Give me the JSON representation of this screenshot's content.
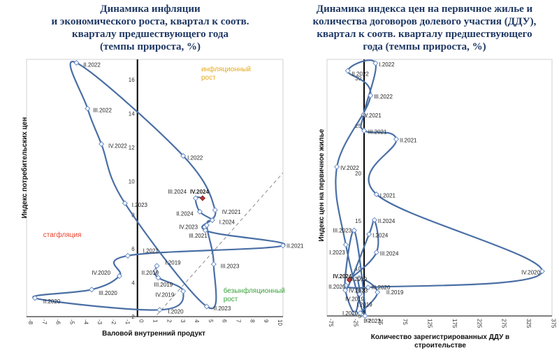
{
  "chart_data": [
    {
      "type": "line",
      "title": "Динамика инфляции\nи экономического роста, квартал к соотв.\nкварталу предшествующего года\n(темпы прироста, %)",
      "xlabel": "Валовой внутренний продукт",
      "ylabel": "Индекс потребительских цен",
      "xlim": [
        -8,
        10.5
      ],
      "ylim": [
        2,
        17.2
      ],
      "x_ticks": [
        -8,
        -7,
        -6,
        -5,
        -4,
        -3,
        -2,
        -1,
        0,
        1,
        2,
        3,
        4,
        5,
        6,
        7,
        8,
        9,
        10
      ],
      "y_ticks": [
        2,
        4,
        6,
        8,
        10,
        12,
        14,
        16
      ],
      "grid": false,
      "zones": [
        {
          "text": "инфляционный\nрост",
          "color": "#e6a817",
          "x": 4.6,
          "y": 16.5
        },
        {
          "text": "стагфляция",
          "color": "#e8412c",
          "x": -6.8,
          "y": 6.7
        },
        {
          "text": "безынфляционный\nрост",
          "color": "#3ba33b",
          "x": 6.2,
          "y": 3.4
        }
      ],
      "series": [
        {
          "points": [
            {
              "label": "I.2019",
              "x": 1.4,
              "y": 5.0,
              "lx": 2.0,
              "ly": 5.2
            },
            {
              "label": "II.2019",
              "x": 1.3,
              "y": 4.7,
              "lx": 0.3,
              "ly": 4.6
            },
            {
              "label": "III.2019",
              "x": 1.5,
              "y": 4.3,
              "lx": 1.2,
              "ly": 3.9
            },
            {
              "label": "IV.2019",
              "x": 3.3,
              "y": 3.5,
              "lx": 1.3,
              "ly": 3.3
            },
            {
              "label": "I.2020",
              "x": 1.6,
              "y": 2.4,
              "lx": 2.2,
              "ly": 2.3
            },
            {
              "label": "II.2020",
              "x": -7.4,
              "y": 3.1,
              "lx": -6.8,
              "ly": 2.9
            },
            {
              "label": "III.2020",
              "x": -3.3,
              "y": 3.6,
              "lx": -2.8,
              "ly": 3.4
            },
            {
              "label": "IV.2020",
              "x": -1.3,
              "y": 4.4,
              "lx": -3.3,
              "ly": 4.6
            },
            {
              "label": "I.2021",
              "x": -0.7,
              "y": 5.6,
              "lx": 0.4,
              "ly": 5.9
            },
            {
              "label": "II.2021",
              "x": 10.5,
              "y": 6.2
            },
            {
              "label": "III.2021",
              "x": 4.9,
              "y": 7.1,
              "lx": 3.7,
              "ly": 6.8
            },
            {
              "label": "IV.2021",
              "x": 5.6,
              "y": 8.3,
              "lx": 6.1,
              "ly": 8.2
            },
            {
              "label": "I.2022",
              "x": 3.3,
              "y": 11.5,
              "lx": 3.6,
              "ly": 11.4
            },
            {
              "label": "II.2022",
              "x": -4.4,
              "y": 17.0,
              "lx": -3.9,
              "ly": 16.9
            },
            {
              "label": "III.2022",
              "x": -3.6,
              "y": 14.3,
              "lx": -3.2,
              "ly": 14.2
            },
            {
              "label": "IV.2022",
              "x": -2.6,
              "y": 12.2,
              "lx": -2.1,
              "ly": 12.1
            },
            {
              "label": "I.2023",
              "x": -0.9,
              "y": 8.7,
              "lx": -0.4,
              "ly": 8.6
            },
            {
              "label": "II.2023",
              "x": 5.0,
              "y": 2.6,
              "lx": 5.5,
              "ly": 2.5
            },
            {
              "label": "III.2023",
              "x": 5.5,
              "y": 5.1,
              "lx": 6.0,
              "ly": 5.0
            },
            {
              "label": "IV.2023",
              "x": 5.0,
              "y": 7.4,
              "lx": 3.0,
              "ly": 7.3
            },
            {
              "label": "I.2024",
              "x": 5.4,
              "y": 7.7,
              "lx": 5.9,
              "ly": 7.6
            },
            {
              "label": "II.2024",
              "x": 4.5,
              "y": 8.2,
              "lx": 2.8,
              "ly": 8.1
            },
            {
              "label": "III.2024",
              "x": 4.2,
              "y": 9.0,
              "lx": 2.2,
              "ly": 9.4
            },
            {
              "label": "IV.2024",
              "x": 4.7,
              "y": 9.0,
              "lx": 3.8,
              "ly": 9.4,
              "highlight": true
            }
          ]
        }
      ]
    },
    {
      "type": "line",
      "title": "Динамика индекса цен на первичное жилье и\nколичества договоров долевого участия (ДДУ),\nквартал к соотв. кварталу предшествующего\nгода (темпы прироста, %)",
      "xlabel": "Количество зарегистрированных ДДУ в\nстроительстве",
      "ylabel": "Индекс цен на первичное жилье",
      "xlim": [
        -75,
        380
      ],
      "ylim": [
        5,
        32
      ],
      "x_ticks": [
        -75,
        -25,
        25,
        75,
        125,
        175,
        225,
        275,
        325,
        375
      ],
      "x_extra_tick": {
        "label": "0",
        "value": 0
      },
      "y_ticks": [
        5,
        10,
        15,
        20,
        25,
        30
      ],
      "grid": false,
      "series": [
        {
          "points": [
            {
              "label": "I.2019",
              "x": -8,
              "y": 5.3,
              "lx": -15,
              "ly": 6.2
            },
            {
              "label": "II.2019",
              "x": 27,
              "y": 7.5,
              "lx": 45,
              "ly": 7.5
            },
            {
              "label": "III.2019",
              "x": -10,
              "y": 9.0,
              "lx": -32,
              "ly": 8.9
            },
            {
              "label": "IV.2019",
              "x": -9,
              "y": 7.3,
              "lx": -38,
              "ly": 6.8
            },
            {
              "label": "I.2020",
              "x": -20,
              "y": 5.3,
              "lx": -44,
              "ly": 5.3
            },
            {
              "label": "II.2020",
              "x": -37,
              "y": 8.2,
              "lx": -72,
              "ly": 8.1
            },
            {
              "label": "III.2020",
              "x": 8,
              "y": 8.0
            },
            {
              "label": "IV.2020",
              "x": 360,
              "y": 9.7,
              "lx": 318,
              "ly": 9.6
            },
            {
              "label": "I.2021",
              "x": 25,
              "y": 17.8,
              "lx": 32,
              "ly": 17.7
            },
            {
              "label": "II.2021",
              "x": 65,
              "y": 23.6,
              "lx": 72,
              "ly": 23.5
            },
            {
              "label": "III.2021",
              "x": 0,
              "y": 24.5,
              "lx": 8,
              "ly": 24.4
            },
            {
              "label": "IV.2021",
              "x": -1,
              "y": 26.2,
              "lx": -3,
              "ly": 26.1
            },
            {
              "label": "I.2022",
              "x": 23,
              "y": 31.6,
              "lx": 30,
              "ly": 31.5
            },
            {
              "label": "II.2022",
              "x": -33,
              "y": 30.8,
              "lx": -25,
              "ly": 30.5
            },
            {
              "label": "III.2022",
              "x": 13,
              "y": 28.2,
              "lx": 20,
              "ly": 28.1
            },
            {
              "label": "IV.2022",
              "x": -55,
              "y": 20.7,
              "lx": -48,
              "ly": 20.6
            },
            {
              "label": "I.2023",
              "x": -37,
              "y": 12.5,
              "lx": -70,
              "ly": 11.7
            },
            {
              "label": "II.2023",
              "x": 2,
              "y": 5.0,
              "lx": -1,
              "ly": 4.5
            },
            {
              "label": "III.2023",
              "x": -20,
              "y": 14.0,
              "lx": -63,
              "ly": 14.0
            },
            {
              "label": "IV.2023",
              "x": -38,
              "y": 7.7
            },
            {
              "label": "I.2024",
              "x": 10,
              "y": 13.6,
              "lx": 17,
              "ly": 13.5
            },
            {
              "label": "II.2024",
              "x": 21,
              "y": 15.1,
              "lx": 28,
              "ly": 15.0
            },
            {
              "label": "III.2024",
              "x": 25,
              "y": 11.7,
              "lx": 32,
              "ly": 11.6
            },
            {
              "label": "IV.2024",
              "x": -30,
              "y": 8.8,
              "lx": -63,
              "ly": 9.2,
              "highlight": true
            }
          ]
        }
      ]
    }
  ]
}
